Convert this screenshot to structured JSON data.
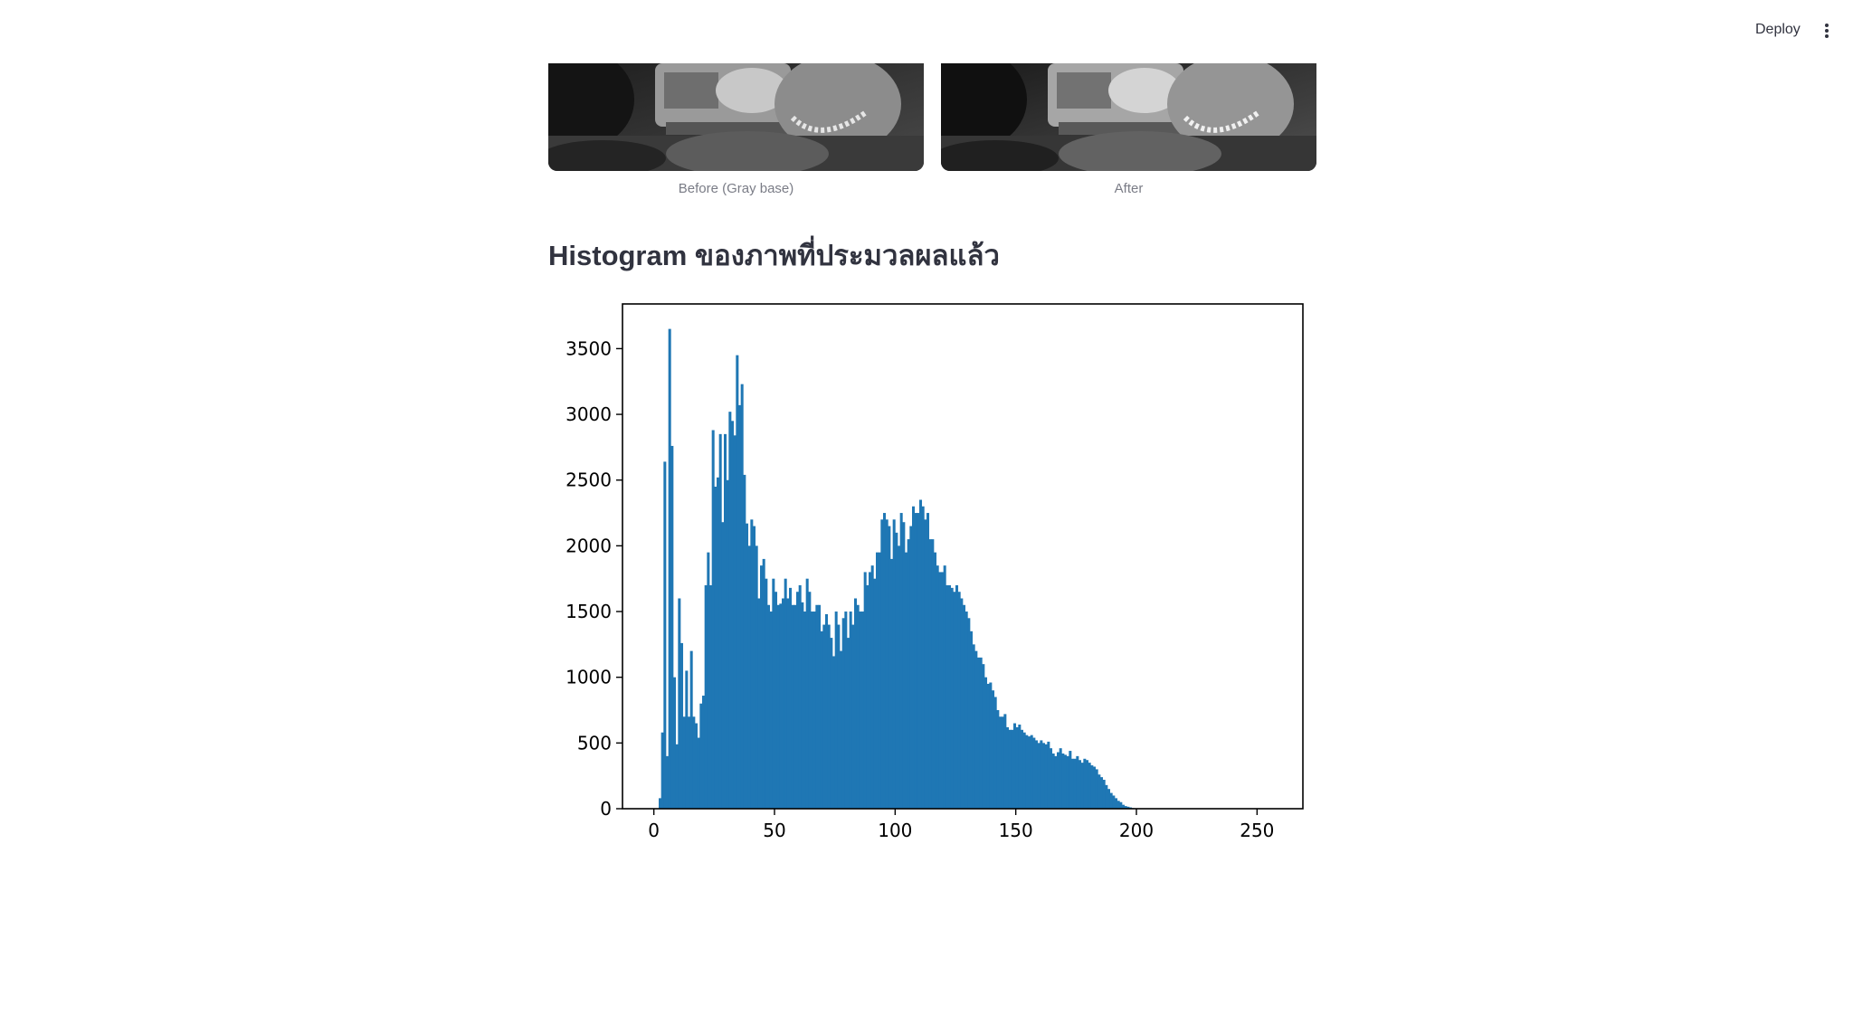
{
  "header": {
    "deploy_label": "Deploy",
    "menu_icon": "vertical-ellipsis-icon"
  },
  "images": [
    {
      "caption": "Before (Gray base)"
    },
    {
      "caption": "After"
    }
  ],
  "section": {
    "title": "Histogram ของภาพที่ประมวลผลแล้ว"
  },
  "chart_data": {
    "type": "bar",
    "title": "",
    "xlabel": "",
    "ylabel": "",
    "xlim": [
      -13,
      269
    ],
    "ylim": [
      0,
      3840
    ],
    "x_ticks": [
      0,
      50,
      100,
      150,
      200,
      250
    ],
    "y_ticks": [
      0,
      500,
      1000,
      1500,
      2000,
      2500,
      3000,
      3500
    ],
    "grid": false,
    "bar_color": "#1f77b4",
    "bins_start": 0,
    "bin_width": 1,
    "values": [
      0,
      0,
      80,
      580,
      2640,
      400,
      3650,
      2760,
      1000,
      490,
      1600,
      1260,
      700,
      1050,
      700,
      1200,
      700,
      650,
      540,
      800,
      860,
      1700,
      1950,
      1700,
      2880,
      2450,
      2520,
      2850,
      2180,
      2850,
      2500,
      3020,
      2950,
      2840,
      3450,
      3070,
      3230,
      2540,
      2170,
      2000,
      2200,
      2150,
      2000,
      1600,
      1850,
      1900,
      1750,
      1550,
      1500,
      1750,
      1650,
      1550,
      1560,
      1600,
      1750,
      1600,
      1680,
      1550,
      1550,
      1650,
      1700,
      1570,
      1500,
      1750,
      1650,
      1500,
      1500,
      1550,
      1550,
      1350,
      1400,
      1480,
      1400,
      1300,
      1160,
      1500,
      1400,
      1200,
      1450,
      1500,
      1300,
      1500,
      1400,
      1600,
      1550,
      1500,
      1500,
      1800,
      1700,
      1800,
      1850,
      1750,
      1950,
      1950,
      2200,
      2250,
      2200,
      2150,
      1900,
      2200,
      2100,
      2000,
      2250,
      2180,
      1950,
      2050,
      2150,
      2300,
      2250,
      2250,
      2350,
      2300,
      2200,
      2250,
      2050,
      2050,
      1950,
      1850,
      1800,
      1800,
      1850,
      1700,
      1700,
      1680,
      1650,
      1700,
      1650,
      1600,
      1550,
      1500,
      1450,
      1350,
      1250,
      1200,
      1150,
      1150,
      1100,
      1000,
      950,
      960,
      900,
      850,
      750,
      700,
      700,
      720,
      620,
      600,
      600,
      650,
      620,
      640,
      600,
      580,
      560,
      550,
      560,
      540,
      520,
      500,
      520,
      500,
      490,
      510,
      460,
      420,
      400,
      430,
      460,
      420,
      410,
      400,
      440,
      380,
      380,
      400,
      370,
      350,
      380,
      370,
      350,
      330,
      320,
      300,
      260,
      240,
      220,
      180,
      150,
      120,
      100,
      80,
      60,
      50,
      30,
      20,
      15,
      10,
      5,
      3,
      2,
      1,
      0,
      0,
      0,
      0,
      0,
      0,
      0,
      0,
      0,
      0,
      0,
      0,
      0,
      0,
      0,
      0,
      0,
      0,
      0,
      0,
      0,
      0,
      0,
      0,
      0,
      0,
      0,
      0,
      0,
      0,
      0,
      0,
      0,
      0,
      0,
      0,
      0,
      0,
      0,
      0,
      0,
      0,
      0,
      0,
      0
    ]
  }
}
